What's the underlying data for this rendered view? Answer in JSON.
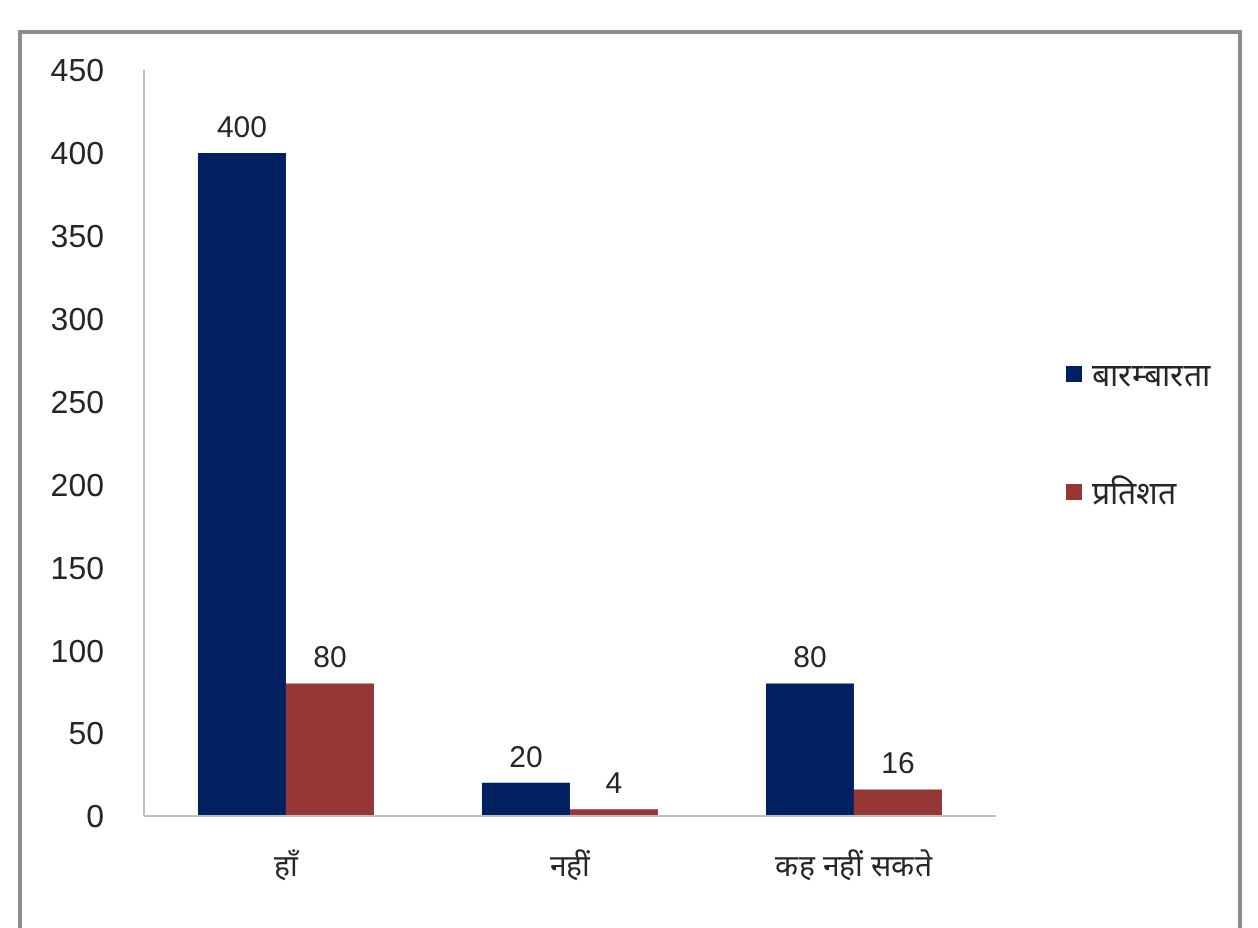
{
  "chart_data": {
    "type": "bar",
    "categories": [
      "हाँ",
      "नहीं",
      "कह नहीं सकते"
    ],
    "series": [
      {
        "name": "बारम्बारता",
        "color": "#002060",
        "values": [
          400,
          20,
          80
        ]
      },
      {
        "name": "प्रतिशत",
        "color": "#953735",
        "values": [
          80,
          4,
          16
        ]
      }
    ],
    "ylim": [
      0,
      450
    ],
    "yticks": [
      0,
      50,
      100,
      150,
      200,
      250,
      300,
      350,
      400,
      450
    ],
    "legend": "right",
    "data_labels": true
  }
}
